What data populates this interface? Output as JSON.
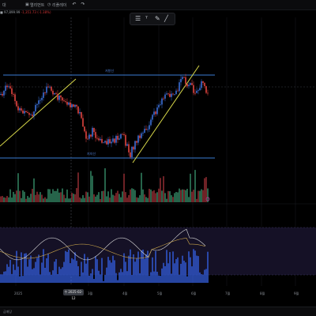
{
  "toolbar": {
    "left_label": "대",
    "item1": "엘리먼트",
    "item2": "리플레이",
    "undo_icon": "undo-icon",
    "redo_icon": "redo-icon"
  },
  "info": {
    "symbol_price": "■ 97,899.99",
    "change": "-1,351.73 (-1.38%)"
  },
  "drawing_toolbar": {
    "icons": [
      "list-icon",
      "text-icon",
      "brush-icon",
      "line-icon"
    ]
  },
  "annotations": {
    "resistance_label": "저항선",
    "support_label": "지지선"
  },
  "xaxis": {
    "labels": [
      "2025",
      "3월",
      "4월",
      "5월",
      "6월",
      "7월",
      "8월",
      "9월"
    ],
    "cursor_label": "수 2025-02-12"
  },
  "bottombar": {
    "label": "급매당"
  },
  "colors": {
    "up": "#3b6fd8",
    "down": "#e0433f",
    "trendline": "#d9d94a",
    "level": "#3a7bd5",
    "panel_bg": "#151126"
  }
}
